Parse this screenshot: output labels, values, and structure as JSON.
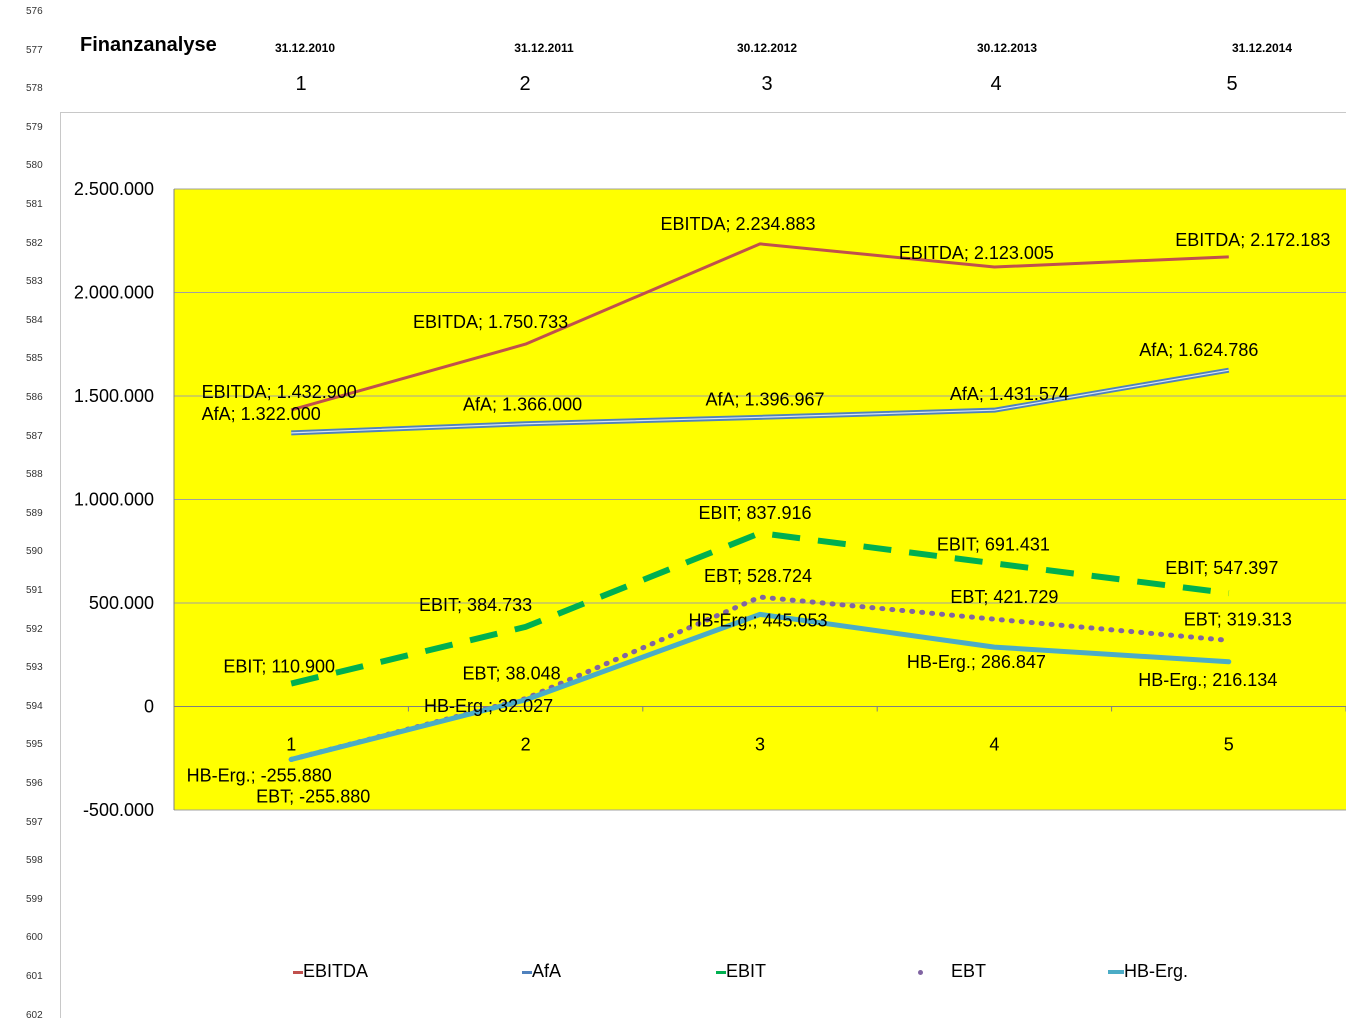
{
  "row_numbers": [
    "576",
    "577",
    "578",
    "579",
    "580",
    "581",
    "582",
    "583",
    "584",
    "585",
    "586",
    "587",
    "588",
    "589",
    "590",
    "591",
    "592",
    "593",
    "594",
    "595",
    "596",
    "597",
    "598",
    "599",
    "600",
    "601",
    "602"
  ],
  "header": {
    "title": "Finanzanalyse",
    "dates": [
      "31.12.2010",
      "31.12.2011",
      "30.12.2012",
      "30.12.2013",
      "31.12.2014"
    ],
    "indices": [
      "1",
      "2",
      "3",
      "4",
      "5"
    ]
  },
  "colors": {
    "plot_bg": "#ffff00",
    "grid": "#a0a0a0",
    "EBITDA": "#c0504d",
    "AfA": "#4f81bd",
    "EBIT": "#00b050",
    "EBT": "#8064a2",
    "HB-Erg.": "#4bacc6"
  },
  "chart_data": {
    "type": "line",
    "categories": [
      "1",
      "2",
      "3",
      "4",
      "5"
    ],
    "y_tick_labels": [
      "-500.000",
      "0",
      "500.000",
      "1.000.000",
      "1.500.000",
      "2.000.000",
      "2.500.000"
    ],
    "y_ticks": [
      -500000,
      0,
      500000,
      1000000,
      1500000,
      2000000,
      2500000
    ],
    "ylim": [
      -500000,
      2500000
    ],
    "legend_position": "bottom",
    "grid": true,
    "series": [
      {
        "name": "EBITDA",
        "values": [
          1432900,
          1750733,
          2234883,
          2123005,
          2172183
        ],
        "labels": [
          "EBITDA; 1.432.900",
          "EBITDA; 1.750.733",
          "EBITDA; 2.234.883",
          "EBITDA; 2.123.005",
          "EBITDA; 2.172.183"
        ]
      },
      {
        "name": "AfA",
        "values": [
          1322000,
          1366000,
          1396967,
          1431574,
          1624786
        ],
        "labels": [
          "AfA; 1.322.000",
          "AfA; 1.366.000",
          "AfA; 1.396.967",
          "AfA; 1.431.574",
          "AfA; 1.624.786"
        ]
      },
      {
        "name": "EBIT",
        "values": [
          110900,
          384733,
          837916,
          691431,
          547397
        ],
        "labels": [
          "EBIT; 110.900",
          "EBIT; 384.733",
          "EBIT; 837.916",
          "EBIT; 691.431",
          "EBIT; 547.397"
        ]
      },
      {
        "name": "EBT",
        "values": [
          -255880,
          38048,
          528724,
          421729,
          319313
        ],
        "labels": [
          "EBT; -255.880",
          "EBT; 38.048",
          "EBT; 528.724",
          "EBT; 421.729",
          "EBT; 319.313"
        ]
      },
      {
        "name": "HB-Erg.",
        "values": [
          -255880,
          32027,
          445053,
          286847,
          216134
        ],
        "labels": [
          "HB-Erg.; -255.880",
          "HB-Erg.; 32.027",
          "HB-Erg.; 445.053",
          "HB-Erg.; 286.847",
          "HB-Erg.; 216.134"
        ]
      }
    ]
  }
}
